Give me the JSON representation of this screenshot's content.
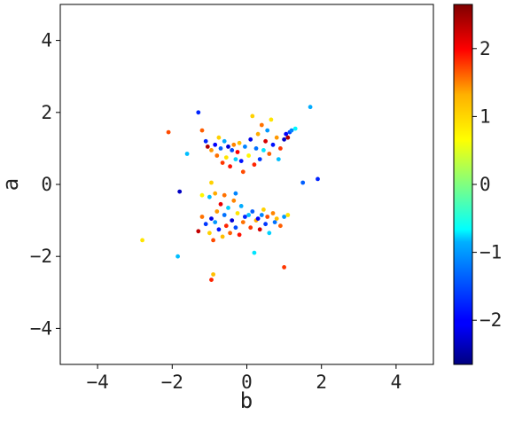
{
  "chart_data": {
    "type": "scatter",
    "title": "",
    "xlabel": "b",
    "ylabel": "a",
    "xlim": [
      -5,
      5
    ],
    "ylim": [
      -5,
      5
    ],
    "xticks": [
      -4,
      -2,
      0,
      2,
      4
    ],
    "yticks": [
      -4,
      -2,
      0,
      2,
      4
    ],
    "x_tick_labels": [
      "−4",
      "−2",
      "0",
      "2",
      "4"
    ],
    "y_tick_labels": [
      "−4",
      "−2",
      "0",
      "2",
      "4"
    ],
    "grid": false,
    "colormap": "jet",
    "colorbar": {
      "range": [
        -2.65,
        2.65
      ],
      "ticks": [
        -2,
        -1,
        0,
        1,
        2
      ],
      "tick_labels": [
        "−2",
        "−1",
        "0",
        "1",
        "2"
      ]
    },
    "points": [
      {
        "x": -1.3,
        "y": 2.0,
        "c": -1.8
      },
      {
        "x": -2.1,
        "y": 1.45,
        "c": 1.6
      },
      {
        "x": -1.6,
        "y": 0.85,
        "c": -1.0
      },
      {
        "x": -1.2,
        "y": 1.5,
        "c": 1.5
      },
      {
        "x": -1.1,
        "y": 1.2,
        "c": -1.8
      },
      {
        "x": -1.05,
        "y": 1.05,
        "c": 2.4
      },
      {
        "x": -0.95,
        "y": 0.95,
        "c": 1.2
      },
      {
        "x": -0.85,
        "y": 1.1,
        "c": -2.0
      },
      {
        "x": -0.8,
        "y": 0.8,
        "c": 1.4
      },
      {
        "x": -0.75,
        "y": 1.3,
        "c": 0.9
      },
      {
        "x": -0.7,
        "y": 1.0,
        "c": -1.5
      },
      {
        "x": -0.65,
        "y": 0.6,
        "c": 1.7
      },
      {
        "x": -0.6,
        "y": 1.2,
        "c": -1.1
      },
      {
        "x": -0.55,
        "y": 0.75,
        "c": 0.8
      },
      {
        "x": -0.5,
        "y": 1.05,
        "c": -2.2
      },
      {
        "x": -0.45,
        "y": 0.5,
        "c": 1.9
      },
      {
        "x": -0.4,
        "y": 0.95,
        "c": -1.6
      },
      {
        "x": -0.35,
        "y": 1.1,
        "c": 1.3
      },
      {
        "x": -0.3,
        "y": 0.7,
        "c": -0.9
      },
      {
        "x": -0.25,
        "y": 0.9,
        "c": 2.0
      },
      {
        "x": -0.2,
        "y": 1.15,
        "c": 1.0
      },
      {
        "x": -0.15,
        "y": 0.65,
        "c": -1.9
      },
      {
        "x": -0.1,
        "y": 0.35,
        "c": 1.6
      },
      {
        "x": -0.05,
        "y": 1.05,
        "c": -1.3
      },
      {
        "x": 0.05,
        "y": 0.8,
        "c": 0.7
      },
      {
        "x": 0.1,
        "y": 1.25,
        "c": -2.1
      },
      {
        "x": 0.15,
        "y": 1.9,
        "c": 0.9
      },
      {
        "x": 0.2,
        "y": 0.55,
        "c": 1.8
      },
      {
        "x": 0.25,
        "y": 1.0,
        "c": -1.4
      },
      {
        "x": 0.3,
        "y": 1.4,
        "c": 1.1
      },
      {
        "x": 0.35,
        "y": 0.7,
        "c": -1.7
      },
      {
        "x": 0.4,
        "y": 1.65,
        "c": 1.4
      },
      {
        "x": 0.45,
        "y": 0.95,
        "c": -0.8
      },
      {
        "x": 0.5,
        "y": 1.2,
        "c": 2.2
      },
      {
        "x": 0.55,
        "y": 1.5,
        "c": -1.2
      },
      {
        "x": 0.6,
        "y": 0.85,
        "c": 1.5
      },
      {
        "x": 0.65,
        "y": 1.8,
        "c": 0.8
      },
      {
        "x": 0.7,
        "y": 1.1,
        "c": -1.9
      },
      {
        "x": 0.8,
        "y": 1.3,
        "c": 1.2
      },
      {
        "x": 0.85,
        "y": 0.7,
        "c": -1.0
      },
      {
        "x": 0.9,
        "y": 1.0,
        "c": 1.7
      },
      {
        "x": 1.0,
        "y": 1.25,
        "c": -2.3
      },
      {
        "x": 1.05,
        "y": 1.4,
        "c": -2.0
      },
      {
        "x": 1.1,
        "y": 1.3,
        "c": 2.4
      },
      {
        "x": 1.15,
        "y": 1.45,
        "c": -1.6
      },
      {
        "x": 1.2,
        "y": 1.5,
        "c": -1.3
      },
      {
        "x": 1.3,
        "y": 1.55,
        "c": -0.7
      },
      {
        "x": 1.5,
        "y": 0.05,
        "c": -1.5
      },
      {
        "x": 1.7,
        "y": 2.15,
        "c": -1.1
      },
      {
        "x": 1.9,
        "y": 0.15,
        "c": -1.8
      },
      {
        "x": -0.95,
        "y": 0.05,
        "c": 0.9
      },
      {
        "x": -1.8,
        "y": -0.2,
        "c": -2.3
      },
      {
        "x": -1.2,
        "y": -0.3,
        "c": 0.7
      },
      {
        "x": -0.85,
        "y": -0.25,
        "c": 1.1
      },
      {
        "x": -2.8,
        "y": -1.55,
        "c": 0.8
      },
      {
        "x": -1.85,
        "y": -2.0,
        "c": -1.0
      },
      {
        "x": -1.3,
        "y": -1.3,
        "c": 2.3
      },
      {
        "x": -1.2,
        "y": -0.9,
        "c": 1.4
      },
      {
        "x": -1.1,
        "y": -1.1,
        "c": -1.7
      },
      {
        "x": -1.0,
        "y": -1.35,
        "c": 0.9
      },
      {
        "x": -0.95,
        "y": -0.95,
        "c": -2.1
      },
      {
        "x": -0.9,
        "y": -1.55,
        "c": 1.6
      },
      {
        "x": -0.85,
        "y": -1.05,
        "c": -1.2
      },
      {
        "x": -0.8,
        "y": -0.75,
        "c": 1.2
      },
      {
        "x": -0.75,
        "y": -1.25,
        "c": -1.9
      },
      {
        "x": -0.7,
        "y": -0.55,
        "c": 2.1
      },
      {
        "x": -0.65,
        "y": -1.45,
        "c": 1.0
      },
      {
        "x": -0.6,
        "y": -0.85,
        "c": -1.4
      },
      {
        "x": -0.55,
        "y": -1.15,
        "c": 1.8
      },
      {
        "x": -0.5,
        "y": -0.65,
        "c": -0.9
      },
      {
        "x": -0.45,
        "y": -1.35,
        "c": 1.5
      },
      {
        "x": -0.4,
        "y": -1.0,
        "c": -2.2
      },
      {
        "x": -0.35,
        "y": -0.45,
        "c": 1.3
      },
      {
        "x": -0.3,
        "y": -1.2,
        "c": -1.6
      },
      {
        "x": -0.25,
        "y": -0.8,
        "c": 0.8
      },
      {
        "x": -0.2,
        "y": -1.4,
        "c": 1.9
      },
      {
        "x": -0.15,
        "y": -0.6,
        "c": -1.1
      },
      {
        "x": -0.1,
        "y": -1.05,
        "c": 1.4
      },
      {
        "x": -0.05,
        "y": -0.9,
        "c": -1.8
      },
      {
        "x": 0.05,
        "y": -0.85,
        "c": -1.0
      },
      {
        "x": 0.1,
        "y": -1.2,
        "c": 1.7
      },
      {
        "x": 0.15,
        "y": -0.75,
        "c": -1.5
      },
      {
        "x": 0.2,
        "y": -1.9,
        "c": -0.8
      },
      {
        "x": 0.25,
        "y": -1.0,
        "c": 1.1
      },
      {
        "x": 0.3,
        "y": -0.95,
        "c": -2.0
      },
      {
        "x": 0.35,
        "y": -1.25,
        "c": 2.2
      },
      {
        "x": 0.4,
        "y": -0.85,
        "c": -1.3
      },
      {
        "x": 0.45,
        "y": -0.7,
        "c": 0.9
      },
      {
        "x": 0.5,
        "y": -1.1,
        "c": -1.7
      },
      {
        "x": 0.55,
        "y": -0.9,
        "c": 1.6
      },
      {
        "x": 0.6,
        "y": -1.35,
        "c": -0.9
      },
      {
        "x": 0.7,
        "y": -0.8,
        "c": 1.3
      },
      {
        "x": 0.75,
        "y": -1.05,
        "c": -1.4
      },
      {
        "x": 0.8,
        "y": -0.95,
        "c": 1.0
      },
      {
        "x": 0.9,
        "y": -1.15,
        "c": 1.5
      },
      {
        "x": 1.0,
        "y": -0.9,
        "c": -1.2
      },
      {
        "x": 1.1,
        "y": -0.85,
        "c": 0.8
      },
      {
        "x": 1.0,
        "y": -2.3,
        "c": 1.7
      },
      {
        "x": -0.9,
        "y": -2.5,
        "c": 1.0
      },
      {
        "x": -0.95,
        "y": -2.65,
        "c": 1.8
      },
      {
        "x": -1.0,
        "y": -0.35,
        "c": -1.0
      },
      {
        "x": -0.6,
        "y": -0.3,
        "c": 1.4
      },
      {
        "x": -0.3,
        "y": -0.25,
        "c": -1.3
      }
    ]
  }
}
